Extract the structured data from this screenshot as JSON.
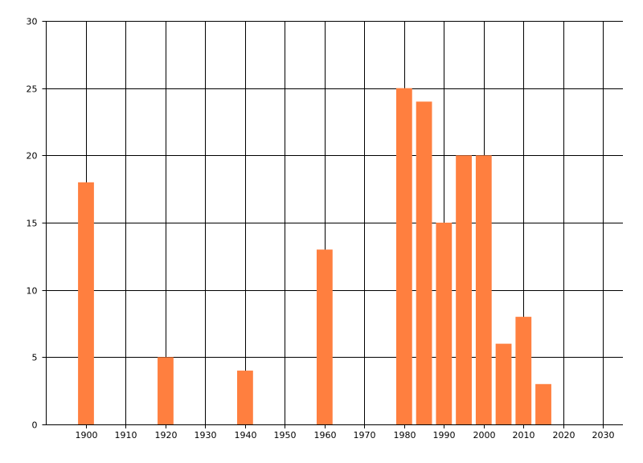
{
  "chart_data": {
    "type": "bar",
    "title": "",
    "xlabel": "",
    "ylabel": "",
    "x": [
      1900,
      1920,
      1940,
      1960,
      1980,
      1985,
      1990,
      1995,
      2000,
      2005,
      2010,
      2015
    ],
    "values": [
      18,
      5,
      4,
      13,
      25,
      24,
      15,
      20,
      20,
      6,
      8,
      3
    ],
    "bar_width_years": 4,
    "xlim": [
      1890,
      2035
    ],
    "ylim": [
      0,
      30
    ],
    "x_ticks": [
      "1900",
      "1910",
      "1920",
      "1930",
      "1940",
      "1950",
      "1960",
      "1970",
      "1980",
      "1990",
      "2000",
      "2010",
      "2020",
      "2030"
    ],
    "y_ticks": [
      "0",
      "5",
      "10",
      "15",
      "20",
      "25",
      "30"
    ],
    "grid": true,
    "legend": "none",
    "bar_color": "#FF7F3F",
    "grid_color": "#000000"
  }
}
